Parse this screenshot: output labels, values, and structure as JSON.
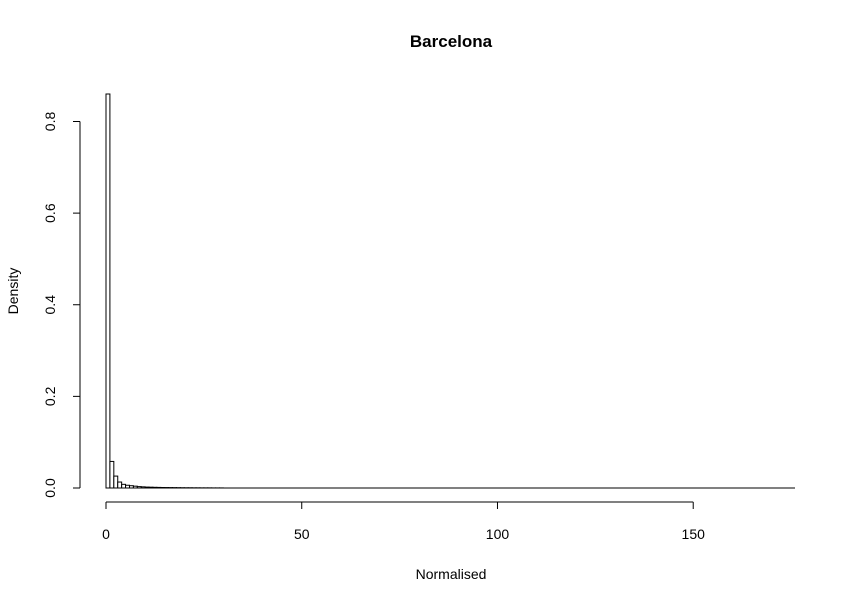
{
  "chart_data": {
    "type": "bar",
    "title": "Barcelona",
    "xlabel": "Normalised",
    "ylabel": "Density",
    "xlim": [
      0,
      176
    ],
    "ylim": [
      0,
      0.86
    ],
    "x_ticks": [
      0,
      50,
      100,
      150
    ],
    "y_ticks": [
      0.0,
      0.2,
      0.4,
      0.6,
      0.8
    ],
    "x_tick_labels": [
      "0",
      "50",
      "100",
      "150"
    ],
    "y_tick_labels": [
      "0.0",
      "0.2",
      "0.4",
      "0.6",
      "0.8"
    ],
    "bin_width": 1,
    "bin_start": 0,
    "values": [
      0.86,
      0.058,
      0.026,
      0.013,
      0.008,
      0.006,
      0.005,
      0.004,
      0.003,
      0.0025,
      0.002,
      0.0018,
      0.0015,
      0.0013,
      0.0011,
      0.001,
      0.0009,
      0.0008,
      0.0007,
      0.0006,
      0.0005,
      0.0005,
      0.0004,
      0.0004,
      0.0003,
      0.0003,
      0.0003,
      0.0002,
      0.0002,
      0.0002
    ],
    "grid": false,
    "legend": "none"
  }
}
